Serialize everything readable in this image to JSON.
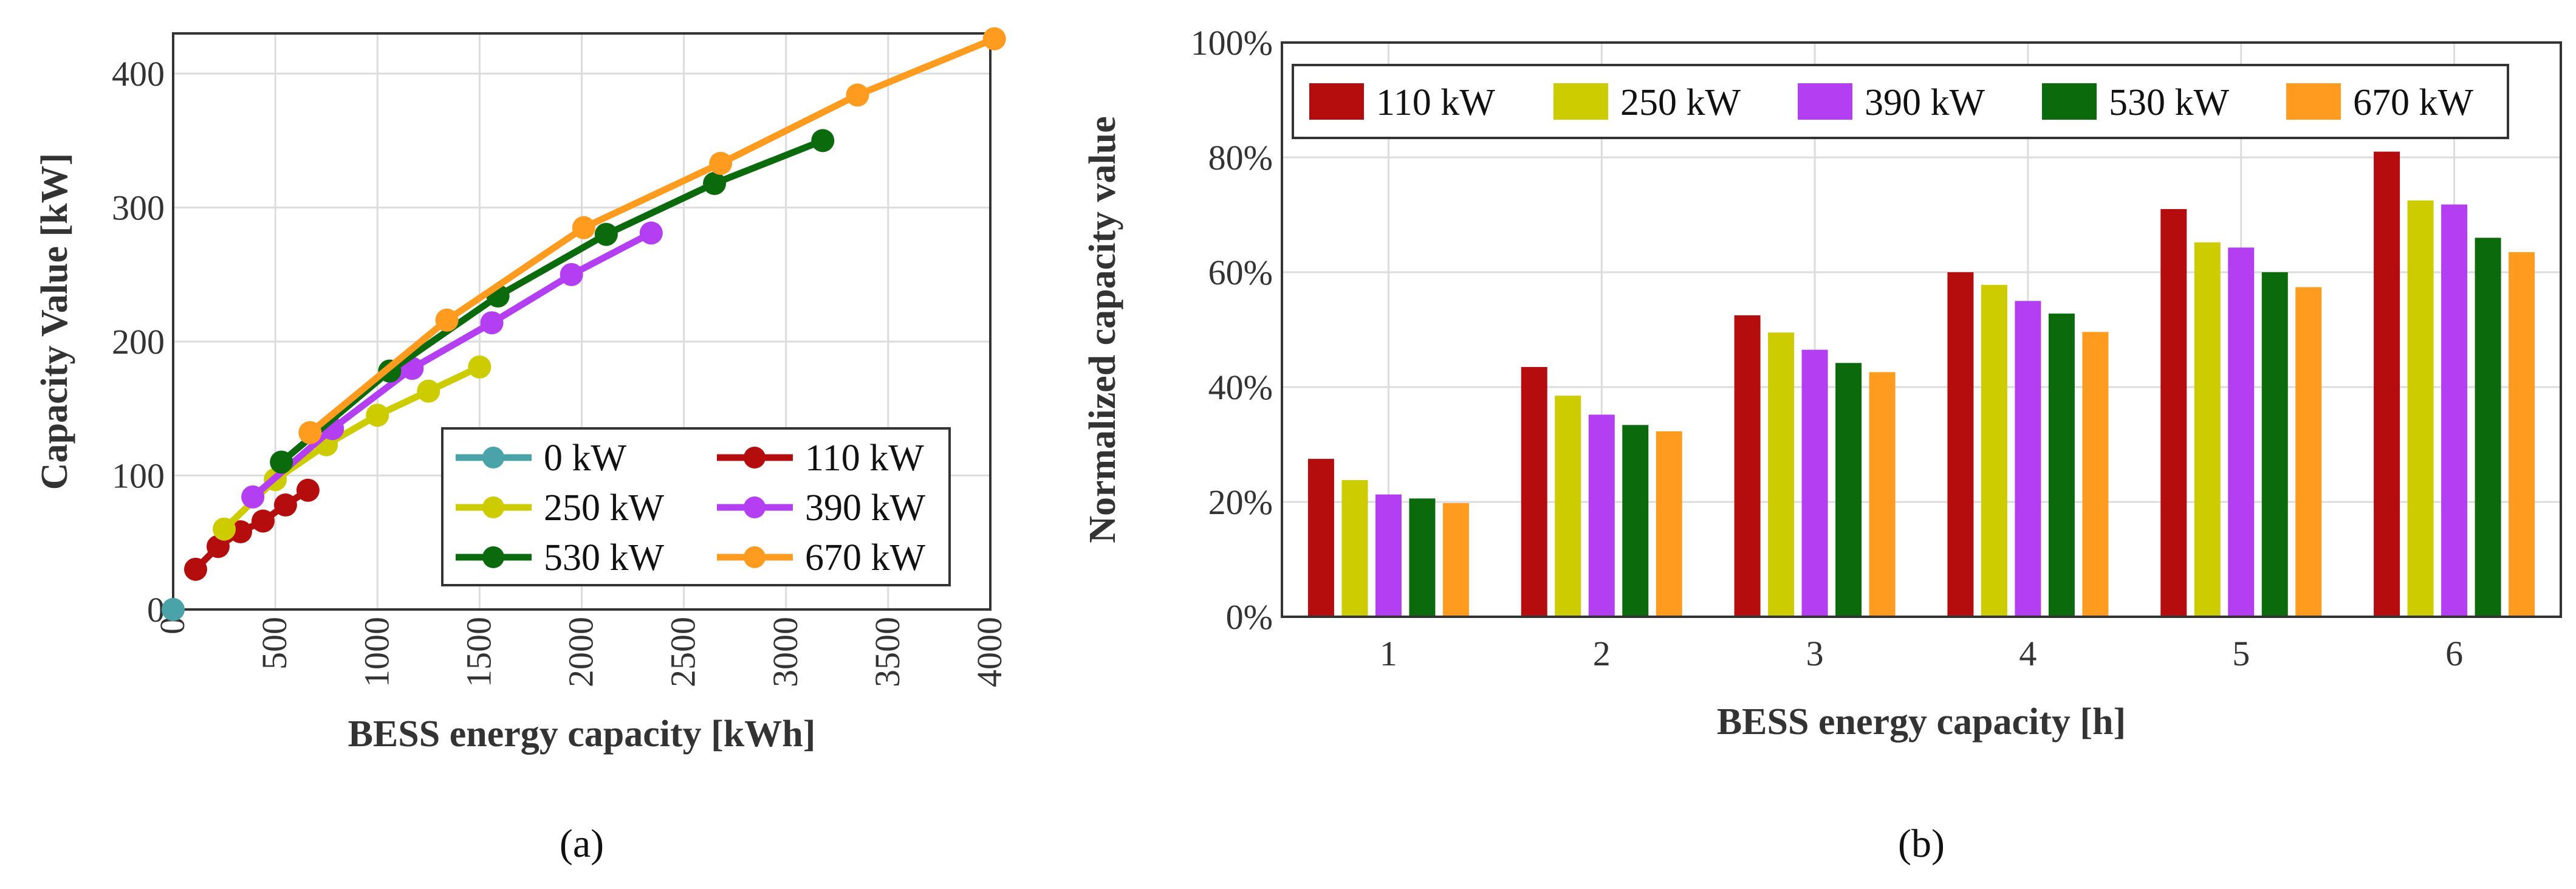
{
  "colors": {
    "0 kW": "#4aa3a8",
    "110 kW": "#b50d0d",
    "250 kW": "#cccc00",
    "390 kW": "#b43ff2",
    "530 kW": "#0b6a0b",
    "670 kW": "#ff9b1f"
  },
  "chart_data": [
    {
      "type": "line",
      "caption": "(a)",
      "xlabel": "BESS energy capacity [kWh]",
      "ylabel": "Capacity Value [kW]",
      "xlim": [
        0,
        4000
      ],
      "ylim": [
        0,
        430
      ],
      "xticks": [
        0,
        500,
        1000,
        1500,
        2000,
        2500,
        3000,
        3500,
        4000
      ],
      "xtick_labels": [
        "0",
        "500",
        "1000",
        "1500",
        "2000",
        "2500",
        "3000",
        "3500",
        "4000"
      ],
      "yticks": [
        0,
        100,
        200,
        300,
        400
      ],
      "ytick_labels": [
        "0",
        "100",
        "200",
        "300",
        "400"
      ],
      "grid": true,
      "legend_position": "bottom-right",
      "legend": [
        "0 kW",
        "110 kW",
        "250 kW",
        "390 kW",
        "530 kW",
        "670 kW"
      ],
      "series": [
        {
          "name": "0 kW",
          "x": [
            0
          ],
          "y": [
            0
          ]
        },
        {
          "name": "110 kW",
          "x": [
            110,
            220,
            330,
            440,
            550,
            660
          ],
          "y": [
            30,
            47,
            58,
            66,
            78,
            89
          ]
        },
        {
          "name": "250 kW",
          "x": [
            250,
            500,
            750,
            1000,
            1250,
            1500
          ],
          "y": [
            60,
            97,
            123,
            145,
            163,
            181
          ]
        },
        {
          "name": "390 kW",
          "x": [
            390,
            780,
            1170,
            1560,
            1950,
            2340
          ],
          "y": [
            84,
            135,
            180,
            214,
            250,
            281
          ]
        },
        {
          "name": "530 kW",
          "x": [
            530,
            1060,
            1590,
            2120,
            2650,
            3180
          ],
          "y": [
            110,
            178,
            234,
            280,
            318,
            350
          ]
        },
        {
          "name": "670 kW",
          "x": [
            670,
            1340,
            2010,
            2680,
            3350,
            4020
          ],
          "y": [
            132,
            216,
            285,
            333,
            384,
            426
          ]
        }
      ]
    },
    {
      "type": "bar",
      "caption": "(b)",
      "xlabel": "BESS energy capacity [h]",
      "ylabel": "Normalized capacity value",
      "ylim": [
        0,
        100
      ],
      "yticks": [
        0,
        20,
        40,
        60,
        80,
        100
      ],
      "ytick_labels": [
        "0%",
        "20%",
        "40%",
        "60%",
        "80%",
        "100%"
      ],
      "categories": [
        "1",
        "2",
        "3",
        "4",
        "5",
        "6"
      ],
      "grid": true,
      "legend_position": "top",
      "series": [
        {
          "name": "110 kW",
          "values": [
            27.5,
            43.5,
            52.5,
            60,
            71,
            81
          ]
        },
        {
          "name": "250 kW",
          "values": [
            23.8,
            38.5,
            49.5,
            57.8,
            65.2,
            72.5
          ]
        },
        {
          "name": "390 kW",
          "values": [
            21.3,
            35.2,
            46.5,
            55,
            64.3,
            71.8
          ]
        },
        {
          "name": "530 kW",
          "values": [
            20.6,
            33.4,
            44.2,
            52.8,
            60,
            66
          ]
        },
        {
          "name": "670 kW",
          "values": [
            19.8,
            32.3,
            42.6,
            49.6,
            57.4,
            63.5
          ]
        }
      ]
    }
  ]
}
